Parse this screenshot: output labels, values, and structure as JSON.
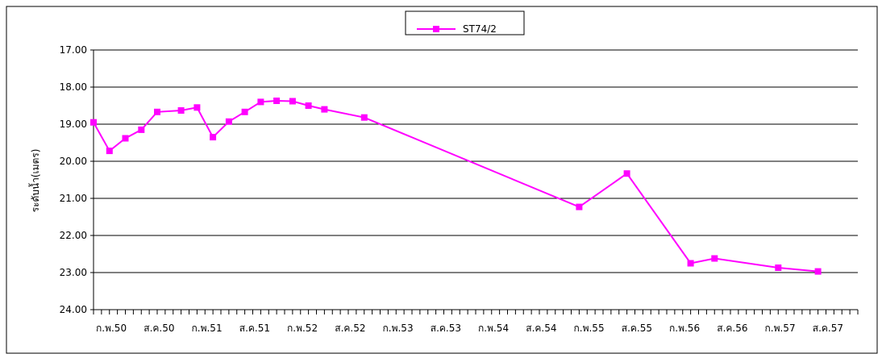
{
  "chart_data": {
    "type": "line",
    "title": "",
    "xlabel": "",
    "ylabel": "ระดับน้ำ(เมตร)",
    "ylim": [
      17.0,
      24.0
    ],
    "y_inverted": true,
    "y_ticks": [
      "17.00",
      "18.00",
      "19.00",
      "20.00",
      "21.00",
      "22.00",
      "23.00",
      "24.00"
    ],
    "x_tick_labels": [
      "ก.พ.50",
      "ส.ค.50",
      "ก.พ.51",
      "ส.ค.51",
      "ก.พ.52",
      "ส.ค.52",
      "ก.พ.53",
      "ส.ค.53",
      "ก.พ.54",
      "ส.ค.54",
      "ก.พ.55",
      "ส.ค.55",
      "ก.พ.56",
      "ส.ค.56",
      "ก.พ.57",
      "ส.ค.57"
    ],
    "x_minor_ticks_per_label": 6,
    "grid": "horizontal",
    "legend_position": "top-center",
    "series": [
      {
        "name": "ST74/2",
        "color": "#FF00FF",
        "marker": "square",
        "points": [
          {
            "x": "2007-02",
            "y": 18.95
          },
          {
            "x": "2007-04",
            "y": 19.72
          },
          {
            "x": "2007-06",
            "y": 19.38
          },
          {
            "x": "2007-08",
            "y": 19.15
          },
          {
            "x": "2007-10",
            "y": 18.67
          },
          {
            "x": "2008-01",
            "y": 18.63
          },
          {
            "x": "2008-03",
            "y": 18.55
          },
          {
            "x": "2008-05",
            "y": 19.35
          },
          {
            "x": "2008-07",
            "y": 18.93
          },
          {
            "x": "2008-09",
            "y": 18.67
          },
          {
            "x": "2008-11",
            "y": 18.4
          },
          {
            "x": "2009-01",
            "y": 18.37
          },
          {
            "x": "2009-03",
            "y": 18.38
          },
          {
            "x": "2009-05",
            "y": 18.5
          },
          {
            "x": "2009-07",
            "y": 18.6
          },
          {
            "x": "2009-12",
            "y": 18.82
          },
          {
            "x": "2012-03",
            "y": 21.23
          },
          {
            "x": "2012-09",
            "y": 20.33
          },
          {
            "x": "2013-05",
            "y": 22.75
          },
          {
            "x": "2013-08",
            "y": 22.62
          },
          {
            "x": "2014-04",
            "y": 22.87
          },
          {
            "x": "2014-09",
            "y": 22.97
          }
        ]
      }
    ]
  }
}
